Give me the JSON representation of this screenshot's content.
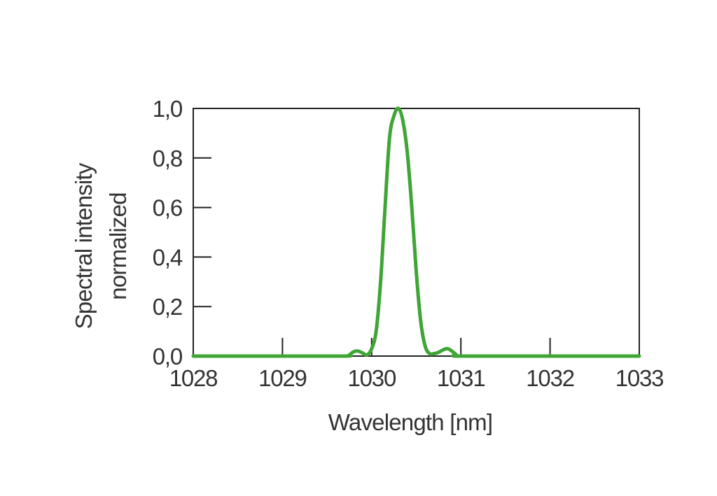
{
  "chart_data": {
    "type": "line",
    "title": "",
    "xlabel": "Wavelength [nm]",
    "ylabel_lines": [
      "Spectral intensity",
      "normalized"
    ],
    "xlim": [
      1028,
      1033
    ],
    "ylim": [
      0,
      1
    ],
    "x_ticks": [
      1028,
      1029,
      1030,
      1031,
      1032,
      1033
    ],
    "x_tick_labels": [
      "1028",
      "1029",
      "1030",
      "1031",
      "1032",
      "1033"
    ],
    "y_ticks": [
      0,
      0.2,
      0.4,
      0.6,
      0.8,
      1.0
    ],
    "y_tick_labels": [
      "0,0",
      "0,2",
      "0,4",
      "0,6",
      "0,8",
      "1,0"
    ],
    "grid": false,
    "legend": "none",
    "line_color": "#3fa535",
    "axis_color": "#222222",
    "text_color": "#333333",
    "series": [
      {
        "x": [
          1028.0,
          1029.0,
          1029.7,
          1029.75,
          1029.8,
          1029.85,
          1029.9,
          1029.95,
          1030.0,
          1030.05,
          1030.1,
          1030.15,
          1030.2,
          1030.25,
          1030.3,
          1030.35,
          1030.4,
          1030.45,
          1030.5,
          1030.55,
          1030.6,
          1030.65,
          1030.7,
          1030.75,
          1030.8,
          1030.85,
          1030.9,
          1030.95,
          1031.0,
          1032.0,
          1033.0
        ],
        "y": [
          0.0,
          0.0,
          0.0,
          0.005,
          0.018,
          0.02,
          0.012,
          0.005,
          0.03,
          0.1,
          0.3,
          0.6,
          0.88,
          0.97,
          1.0,
          0.95,
          0.82,
          0.6,
          0.34,
          0.14,
          0.04,
          0.01,
          0.01,
          0.015,
          0.025,
          0.03,
          0.02,
          0.005,
          0.0,
          0.0,
          0.0
        ]
      }
    ]
  }
}
